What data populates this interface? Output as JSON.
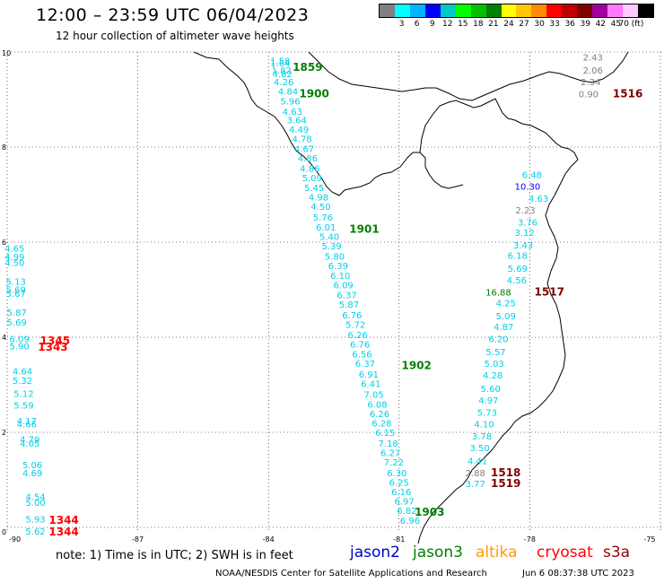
{
  "title": "12:00 – 23:59 UTC 06/04/2023",
  "subtitle": "12 hour collection of altimeter wave heights",
  "colorbar": {
    "colors": [
      "#808080",
      "#00ffff",
      "#00b4ff",
      "#0000ff",
      "#00c8c8",
      "#00ff00",
      "#00c000",
      "#008000",
      "#ffff00",
      "#ffc800",
      "#ff8c00",
      "#ff0000",
      "#c00000",
      "#800000",
      "#a000a0",
      "#ff78ff",
      "#ffc8ff",
      "#000000"
    ],
    "labels": [
      "3",
      "6",
      "9",
      "12",
      "15",
      "18",
      "21",
      "24",
      "27",
      "30",
      "33",
      "36",
      "39",
      "42",
      "45",
      "70 (ft)"
    ]
  },
  "axes": {
    "x_ticks": [
      "-90",
      "-87",
      "-84",
      "-81",
      "-78",
      "-75"
    ],
    "y_ticks": [
      "0",
      "2",
      "4",
      "6",
      "8",
      "10"
    ]
  },
  "track_colors": {
    "cyan": "#00d0e8",
    "blue": "#0000ff",
    "gray": "#808080",
    "green": "#008000",
    "red": "#ff0000",
    "darkred": "#800000"
  },
  "readings": [
    {
      "t": "1.58",
      "x": -83.73,
      "y": 9.75,
      "c": "cyan"
    },
    {
      "t": "1.64",
      "x": -83.73,
      "y": 9.7,
      "c": "cyan"
    },
    {
      "t": "1.82",
      "x": -83.7,
      "y": 9.55,
      "c": "cyan"
    },
    {
      "t": "4.82",
      "x": -83.68,
      "y": 9.47,
      "c": "cyan"
    },
    {
      "t": "4.26",
      "x": -83.65,
      "y": 9.3,
      "c": "cyan"
    },
    {
      "t": "4.84",
      "x": -83.55,
      "y": 9.1,
      "c": "cyan"
    },
    {
      "t": "5.96",
      "x": -83.5,
      "y": 8.9,
      "c": "cyan"
    },
    {
      "t": "4.63",
      "x": -83.45,
      "y": 8.68,
      "c": "cyan"
    },
    {
      "t": "3.64",
      "x": -83.35,
      "y": 8.5,
      "c": "cyan"
    },
    {
      "t": "4.49",
      "x": -83.3,
      "y": 8.3,
      "c": "cyan"
    },
    {
      "t": "4.78",
      "x": -83.23,
      "y": 8.1,
      "c": "cyan"
    },
    {
      "t": "4.67",
      "x": -83.18,
      "y": 7.9,
      "c": "cyan"
    },
    {
      "t": "4.86",
      "x": -83.1,
      "y": 7.7,
      "c": "cyan"
    },
    {
      "t": "4.86",
      "x": -83.05,
      "y": 7.48,
      "c": "cyan"
    },
    {
      "t": "5.09",
      "x": -83.0,
      "y": 7.28,
      "c": "cyan"
    },
    {
      "t": "5.45",
      "x": -82.95,
      "y": 7.08,
      "c": "cyan"
    },
    {
      "t": "4.98",
      "x": -82.85,
      "y": 6.88,
      "c": "cyan"
    },
    {
      "t": "4.50",
      "x": -82.8,
      "y": 6.68,
      "c": "cyan"
    },
    {
      "t": "5.76",
      "x": -82.75,
      "y": 6.45,
      "c": "cyan"
    },
    {
      "t": "6.01",
      "x": -82.68,
      "y": 6.25,
      "c": "cyan"
    },
    {
      "t": "5.40",
      "x": -82.6,
      "y": 6.05,
      "c": "cyan"
    },
    {
      "t": "5.39",
      "x": -82.55,
      "y": 5.85,
      "c": "cyan"
    },
    {
      "t": "5.80",
      "x": -82.48,
      "y": 5.63,
      "c": "cyan"
    },
    {
      "t": "6.39",
      "x": -82.4,
      "y": 5.43,
      "c": "cyan"
    },
    {
      "t": "6.10",
      "x": -82.35,
      "y": 5.23,
      "c": "cyan"
    },
    {
      "t": "6.09",
      "x": -82.28,
      "y": 5.03,
      "c": "cyan"
    },
    {
      "t": "6.37",
      "x": -82.2,
      "y": 4.82,
      "c": "cyan"
    },
    {
      "t": "5.87",
      "x": -82.15,
      "y": 4.62,
      "c": "cyan"
    },
    {
      "t": "6.76",
      "x": -82.08,
      "y": 4.4,
      "c": "cyan"
    },
    {
      "t": "5.72",
      "x": -82.0,
      "y": 4.2,
      "c": "cyan"
    },
    {
      "t": "6.26",
      "x": -81.95,
      "y": 3.98,
      "c": "cyan"
    },
    {
      "t": "6.76",
      "x": -81.9,
      "y": 3.78,
      "c": "cyan"
    },
    {
      "t": "6.56",
      "x": -81.85,
      "y": 3.58,
      "c": "cyan"
    },
    {
      "t": "6.37",
      "x": -81.78,
      "y": 3.38,
      "c": "cyan"
    },
    {
      "t": "6.91",
      "x": -81.7,
      "y": 3.15,
      "c": "cyan"
    },
    {
      "t": "6.41",
      "x": -81.65,
      "y": 2.95,
      "c": "cyan"
    },
    {
      "t": "7.05",
      "x": -81.58,
      "y": 2.73,
      "c": "cyan"
    },
    {
      "t": "6.08",
      "x": -81.5,
      "y": 2.52,
      "c": "cyan"
    },
    {
      "t": "6.26",
      "x": -81.45,
      "y": 2.32,
      "c": "cyan"
    },
    {
      "t": "6.28",
      "x": -81.4,
      "y": 2.12,
      "c": "cyan"
    },
    {
      "t": "6.15",
      "x": -81.32,
      "y": 1.92,
      "c": "cyan"
    },
    {
      "t": "7.18",
      "x": -81.25,
      "y": 1.7,
      "c": "cyan"
    },
    {
      "t": "6.27",
      "x": -81.2,
      "y": 1.5,
      "c": "cyan"
    },
    {
      "t": "7.22",
      "x": -81.12,
      "y": 1.3,
      "c": "cyan"
    },
    {
      "t": "6.30",
      "x": -81.05,
      "y": 1.08,
      "c": "cyan"
    },
    {
      "t": "6.25",
      "x": -81.0,
      "y": 0.88,
      "c": "cyan"
    },
    {
      "t": "6.16",
      "x": -80.95,
      "y": 0.68,
      "c": "cyan"
    },
    {
      "t": "6.97",
      "x": -80.88,
      "y": 0.48,
      "c": "cyan"
    },
    {
      "t": "6.82",
      "x": -80.82,
      "y": 0.28,
      "c": "cyan"
    },
    {
      "t": "6.96",
      "x": -80.75,
      "y": 0.08,
      "c": "cyan"
    },
    {
      "t": "4.65",
      "x": -89.83,
      "y": 5.8,
      "c": "cyan"
    },
    {
      "t": "4.99",
      "x": -89.83,
      "y": 5.62,
      "c": "cyan"
    },
    {
      "t": "4.50",
      "x": -89.83,
      "y": 5.5,
      "c": "cyan"
    },
    {
      "t": "5.13",
      "x": -89.8,
      "y": 5.1,
      "c": "cyan"
    },
    {
      "t": "5.69",
      "x": -89.8,
      "y": 4.93,
      "c": "cyan"
    },
    {
      "t": "5.67",
      "x": -89.8,
      "y": 4.85,
      "c": "cyan"
    },
    {
      "t": "5.87",
      "x": -89.78,
      "y": 4.45,
      "c": "cyan"
    },
    {
      "t": "5.69",
      "x": -89.78,
      "y": 4.25,
      "c": "cyan"
    },
    {
      "t": "6.09",
      "x": -89.72,
      "y": 3.9,
      "c": "cyan"
    },
    {
      "t": "5.90",
      "x": -89.72,
      "y": 3.75,
      "c": "cyan"
    },
    {
      "t": "4.64",
      "x": -89.65,
      "y": 3.22,
      "c": "cyan"
    },
    {
      "t": "5.32",
      "x": -89.65,
      "y": 3.02,
      "c": "cyan"
    },
    {
      "t": "5.12",
      "x": -89.62,
      "y": 2.75,
      "c": "cyan"
    },
    {
      "t": "5.59",
      "x": -89.62,
      "y": 2.5,
      "c": "cyan"
    },
    {
      "t": "4.17",
      "x": -89.55,
      "y": 2.17,
      "c": "cyan"
    },
    {
      "t": "4.66",
      "x": -89.55,
      "y": 2.1,
      "c": "cyan"
    },
    {
      "t": "4.79",
      "x": -89.48,
      "y": 1.78,
      "c": "cyan"
    },
    {
      "t": "4.05",
      "x": -89.48,
      "y": 1.7,
      "c": "cyan"
    },
    {
      "t": "5.06",
      "x": -89.42,
      "y": 1.25,
      "c": "cyan"
    },
    {
      "t": "4.69",
      "x": -89.42,
      "y": 1.08,
      "c": "cyan"
    },
    {
      "t": "4.54",
      "x": -89.35,
      "y": 0.58,
      "c": "cyan"
    },
    {
      "t": "5.00",
      "x": -89.35,
      "y": 0.45,
      "c": "cyan"
    },
    {
      "t": "5.93",
      "x": -89.35,
      "y": 0.1,
      "c": "cyan"
    },
    {
      "t": "5.62",
      "x": -89.35,
      "y": -0.15,
      "c": "cyan"
    },
    {
      "t": "6.48",
      "x": -77.95,
      "y": 7.35,
      "c": "cyan"
    },
    {
      "t": "10.30",
      "x": -78.05,
      "y": 7.1,
      "c": "blue"
    },
    {
      "t": "4.63",
      "x": -77.8,
      "y": 6.85,
      "c": "cyan"
    },
    {
      "t": "2.23",
      "x": -78.1,
      "y": 6.6,
      "c": "gray"
    },
    {
      "t": "3.76",
      "x": -78.05,
      "y": 6.35,
      "c": "cyan"
    },
    {
      "t": "3.12",
      "x": -78.12,
      "y": 6.13,
      "c": "cyan"
    },
    {
      "t": "3.43",
      "x": -78.15,
      "y": 5.87,
      "c": "cyan"
    },
    {
      "t": "6.18",
      "x": -78.28,
      "y": 5.65,
      "c": "cyan"
    },
    {
      "t": "5.69",
      "x": -78.28,
      "y": 5.38,
      "c": "cyan"
    },
    {
      "t": "4.56",
      "x": -78.3,
      "y": 5.13,
      "c": "cyan"
    },
    {
      "t": "16.88",
      "x": -78.72,
      "y": 4.88,
      "c": "green"
    },
    {
      "t": "4.25",
      "x": -78.55,
      "y": 4.65,
      "c": "cyan"
    },
    {
      "t": "5.09",
      "x": -78.55,
      "y": 4.38,
      "c": "cyan"
    },
    {
      "t": "4.87",
      "x": -78.6,
      "y": 4.15,
      "c": "cyan"
    },
    {
      "t": "6.20",
      "x": -78.72,
      "y": 3.9,
      "c": "cyan"
    },
    {
      "t": "5.57",
      "x": -78.78,
      "y": 3.62,
      "c": "cyan"
    },
    {
      "t": "5.03",
      "x": -78.82,
      "y": 3.38,
      "c": "cyan"
    },
    {
      "t": "4.28",
      "x": -78.85,
      "y": 3.13,
      "c": "cyan"
    },
    {
      "t": "5.60",
      "x": -78.9,
      "y": 2.85,
      "c": "cyan"
    },
    {
      "t": "4.97",
      "x": -78.95,
      "y": 2.6,
      "c": "cyan"
    },
    {
      "t": "5.73",
      "x": -78.98,
      "y": 2.35,
      "c": "cyan"
    },
    {
      "t": "4.10",
      "x": -79.05,
      "y": 2.1,
      "c": "cyan"
    },
    {
      "t": "3.78",
      "x": -79.1,
      "y": 1.85,
      "c": "cyan"
    },
    {
      "t": "3.50",
      "x": -79.15,
      "y": 1.6,
      "c": "cyan"
    },
    {
      "t": "4.41",
      "x": -79.2,
      "y": 1.33,
      "c": "cyan"
    },
    {
      "t": "2.88",
      "x": -79.25,
      "y": 1.08,
      "c": "gray"
    },
    {
      "t": "3.77",
      "x": -79.25,
      "y": 0.85,
      "c": "cyan"
    },
    {
      "t": "2.43",
      "x": -76.55,
      "y": 9.82,
      "c": "gray"
    },
    {
      "t": "2.06",
      "x": -76.55,
      "y": 9.55,
      "c": "gray"
    },
    {
      "t": "2.34",
      "x": -76.6,
      "y": 9.3,
      "c": "gray"
    },
    {
      "t": "0.90",
      "x": -76.65,
      "y": 9.05,
      "c": "gray"
    }
  ],
  "passes": [
    {
      "t": "1859",
      "x": -83.1,
      "y": 9.6,
      "c": "green"
    },
    {
      "t": "1900",
      "x": -82.95,
      "y": 9.05,
      "c": "green"
    },
    {
      "t": "1901",
      "x": -81.8,
      "y": 6.2,
      "c": "green"
    },
    {
      "t": "1902",
      "x": -80.6,
      "y": 3.33,
      "c": "green"
    },
    {
      "t": "1903",
      "x": -80.3,
      "y": 0.25,
      "c": "green"
    },
    {
      "t": "1345",
      "x": -88.9,
      "y": 3.85,
      "c": "red"
    },
    {
      "t": "1343",
      "x": -88.95,
      "y": 3.72,
      "c": "red"
    },
    {
      "t": "1344",
      "x": -88.7,
      "y": 0.08,
      "c": "red"
    },
    {
      "t": "1344",
      "x": -88.7,
      "y": -0.17,
      "c": "red"
    },
    {
      "t": "1516",
      "x": -75.75,
      "y": 9.05,
      "c": "darkred"
    },
    {
      "t": "1517",
      "x": -77.55,
      "y": 4.88,
      "c": "darkred"
    },
    {
      "t": "1518",
      "x": -78.55,
      "y": 1.08,
      "c": "darkred"
    },
    {
      "t": "1519",
      "x": -78.55,
      "y": 0.85,
      "c": "darkred"
    }
  ],
  "note": "note:  1) Time is in UTC;  2) SWH is in feet",
  "satellites": [
    {
      "name": "jason2",
      "color": "#0000cc"
    },
    {
      "name": "jason3",
      "color": "#008000"
    },
    {
      "name": "altika",
      "color": "#ff9900"
    },
    {
      "name": "cryosat",
      "color": "#ff0000"
    },
    {
      "name": "s3a",
      "color": "#990000"
    }
  ],
  "credit": "NOAA/NESDIS Center for Satellite Applications and Research",
  "timestamp": "Jun  6 08:37:38 UTC 2023"
}
